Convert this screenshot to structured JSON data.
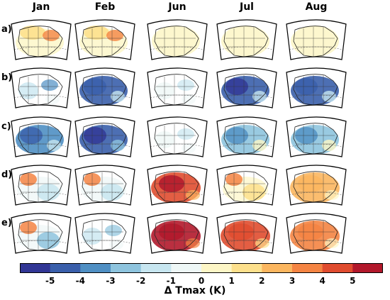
{
  "columns": [
    "Jan",
    "Feb",
    "Jun",
    "Jul",
    "Aug"
  ],
  "rows": [
    "a)",
    "b)",
    "c)",
    "d)",
    "e)"
  ],
  "panels": [
    [
      {
        "style": "warmnorth",
        "level": 0.35
      },
      {
        "style": "warmnorth",
        "level": 0.3
      },
      {
        "style": "uniform",
        "level": 0.1
      },
      {
        "style": "uniform",
        "level": 0.12
      },
      {
        "style": "uniform",
        "level": 0.12
      }
    ],
    [
      {
        "style": "patchy",
        "level": -0.35
      },
      {
        "style": "cold",
        "level": -0.75
      },
      {
        "style": "patchy",
        "level": -0.15
      },
      {
        "style": "cold",
        "level": -0.8
      },
      {
        "style": "cold",
        "level": -0.75
      }
    ],
    [
      {
        "style": "cold",
        "level": -0.7
      },
      {
        "style": "cold",
        "level": -0.9
      },
      {
        "style": "patchy",
        "level": -0.1
      },
      {
        "style": "cold",
        "level": -0.5
      },
      {
        "style": "cold",
        "level": -0.4
      }
    ],
    [
      {
        "style": "mixed",
        "level": -0.35
      },
      {
        "style": "mixed",
        "level": -0.25
      },
      {
        "style": "warm",
        "level": 0.85
      },
      {
        "style": "mixed",
        "level": 0.3
      },
      {
        "style": "warm",
        "level": 0.4
      }
    ],
    [
      {
        "style": "mixed",
        "level": -0.4
      },
      {
        "style": "patchy",
        "level": -0.3
      },
      {
        "style": "warm",
        "level": 0.95
      },
      {
        "style": "warm",
        "level": 0.75
      },
      {
        "style": "warm",
        "level": 0.55
      }
    ]
  ],
  "colorbar": {
    "colors": [
      "#313695",
      "#3a5fab",
      "#4f8fc3",
      "#8ec4de",
      "#c7e6f0",
      "#eef7f6",
      "#fdf6c6",
      "#fde08c",
      "#fbb65f",
      "#f48443",
      "#e04c2f",
      "#b2182b"
    ],
    "tick_labels": [
      "-5",
      "-4",
      "-3",
      "-2",
      "-1",
      "0",
      "1",
      "2",
      "3",
      "4",
      "5"
    ],
    "label": "Δ Tmax (K)"
  }
}
